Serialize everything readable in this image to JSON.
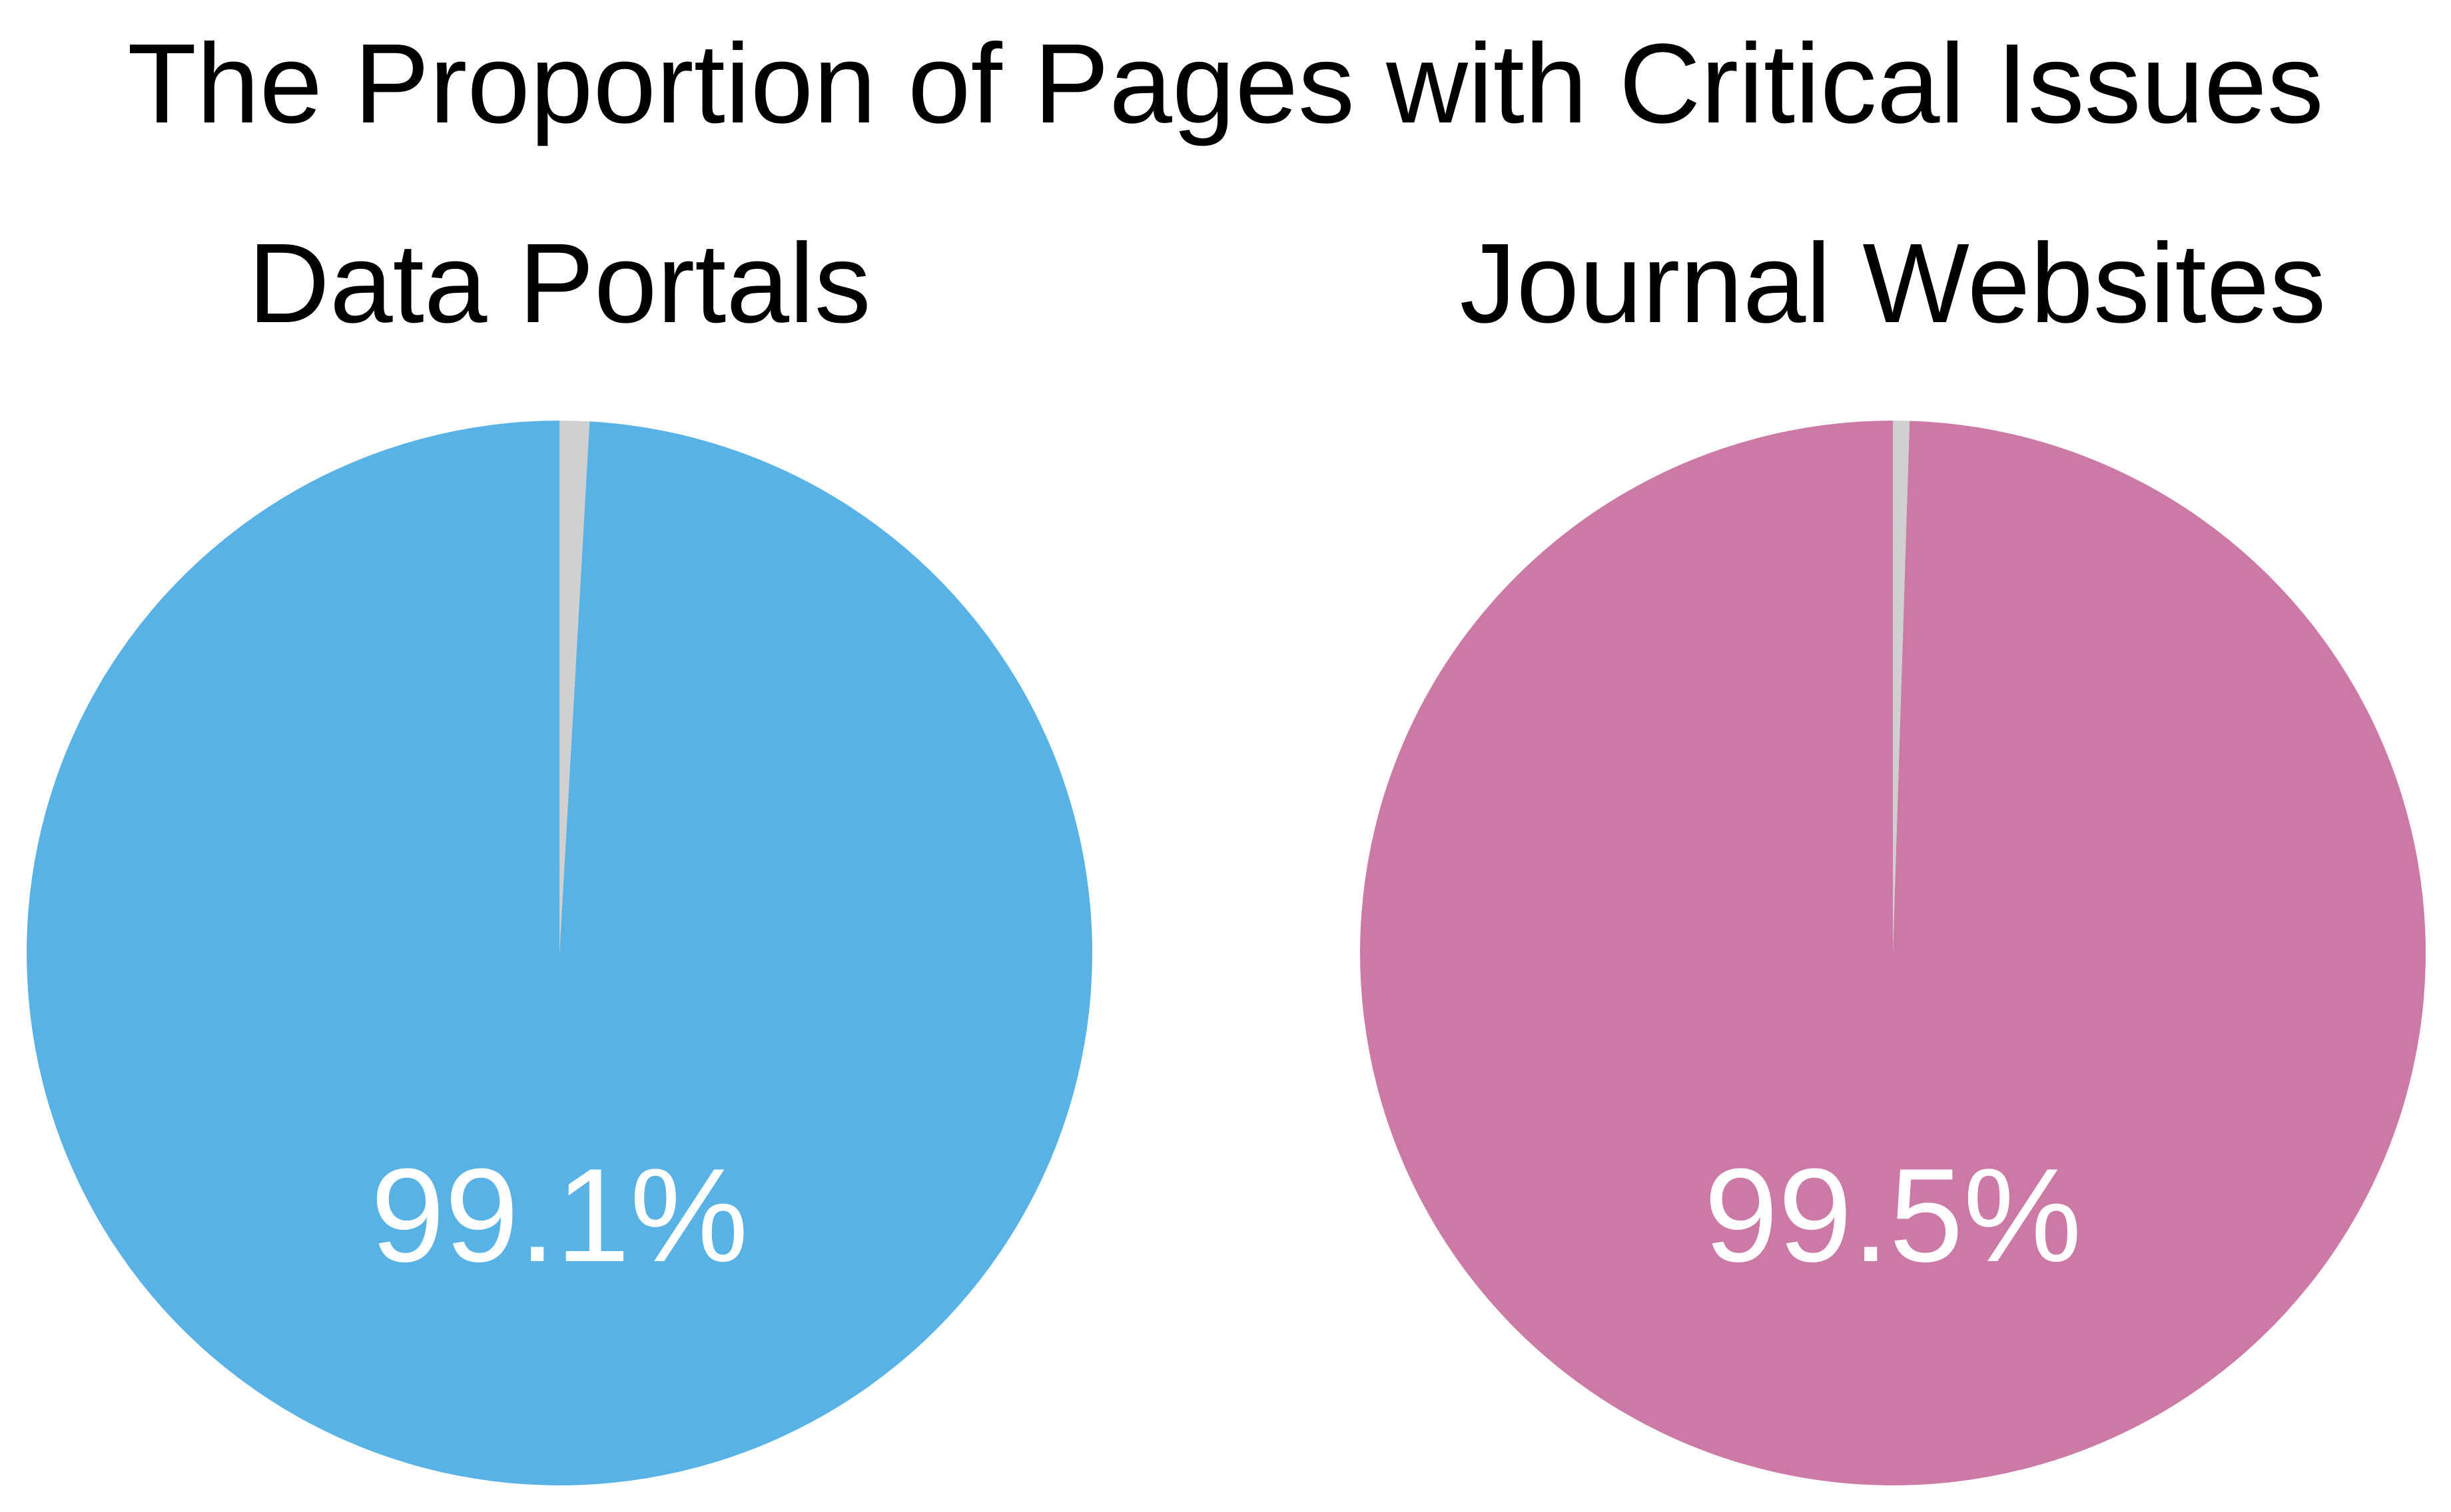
{
  "title": "The Proportion of Pages with Critical Issues",
  "chart_data": [
    {
      "type": "pie",
      "title": "Data Portals",
      "slices": [
        {
          "label": "",
          "value": 99.1,
          "color": "#58b2e6"
        },
        {
          "label": "",
          "value": 0.9,
          "color": "#d0d0d0"
        }
      ],
      "data_label": "99.1%",
      "label_color": "#ffffff"
    },
    {
      "type": "pie",
      "title": "Journal Websites",
      "slices": [
        {
          "label": "",
          "value": 99.5,
          "color": "#cc79a6"
        },
        {
          "label": "",
          "value": 0.5,
          "color": "#d0d0d0"
        }
      ],
      "data_label": "99.5%",
      "label_color": "#ffffff"
    }
  ]
}
